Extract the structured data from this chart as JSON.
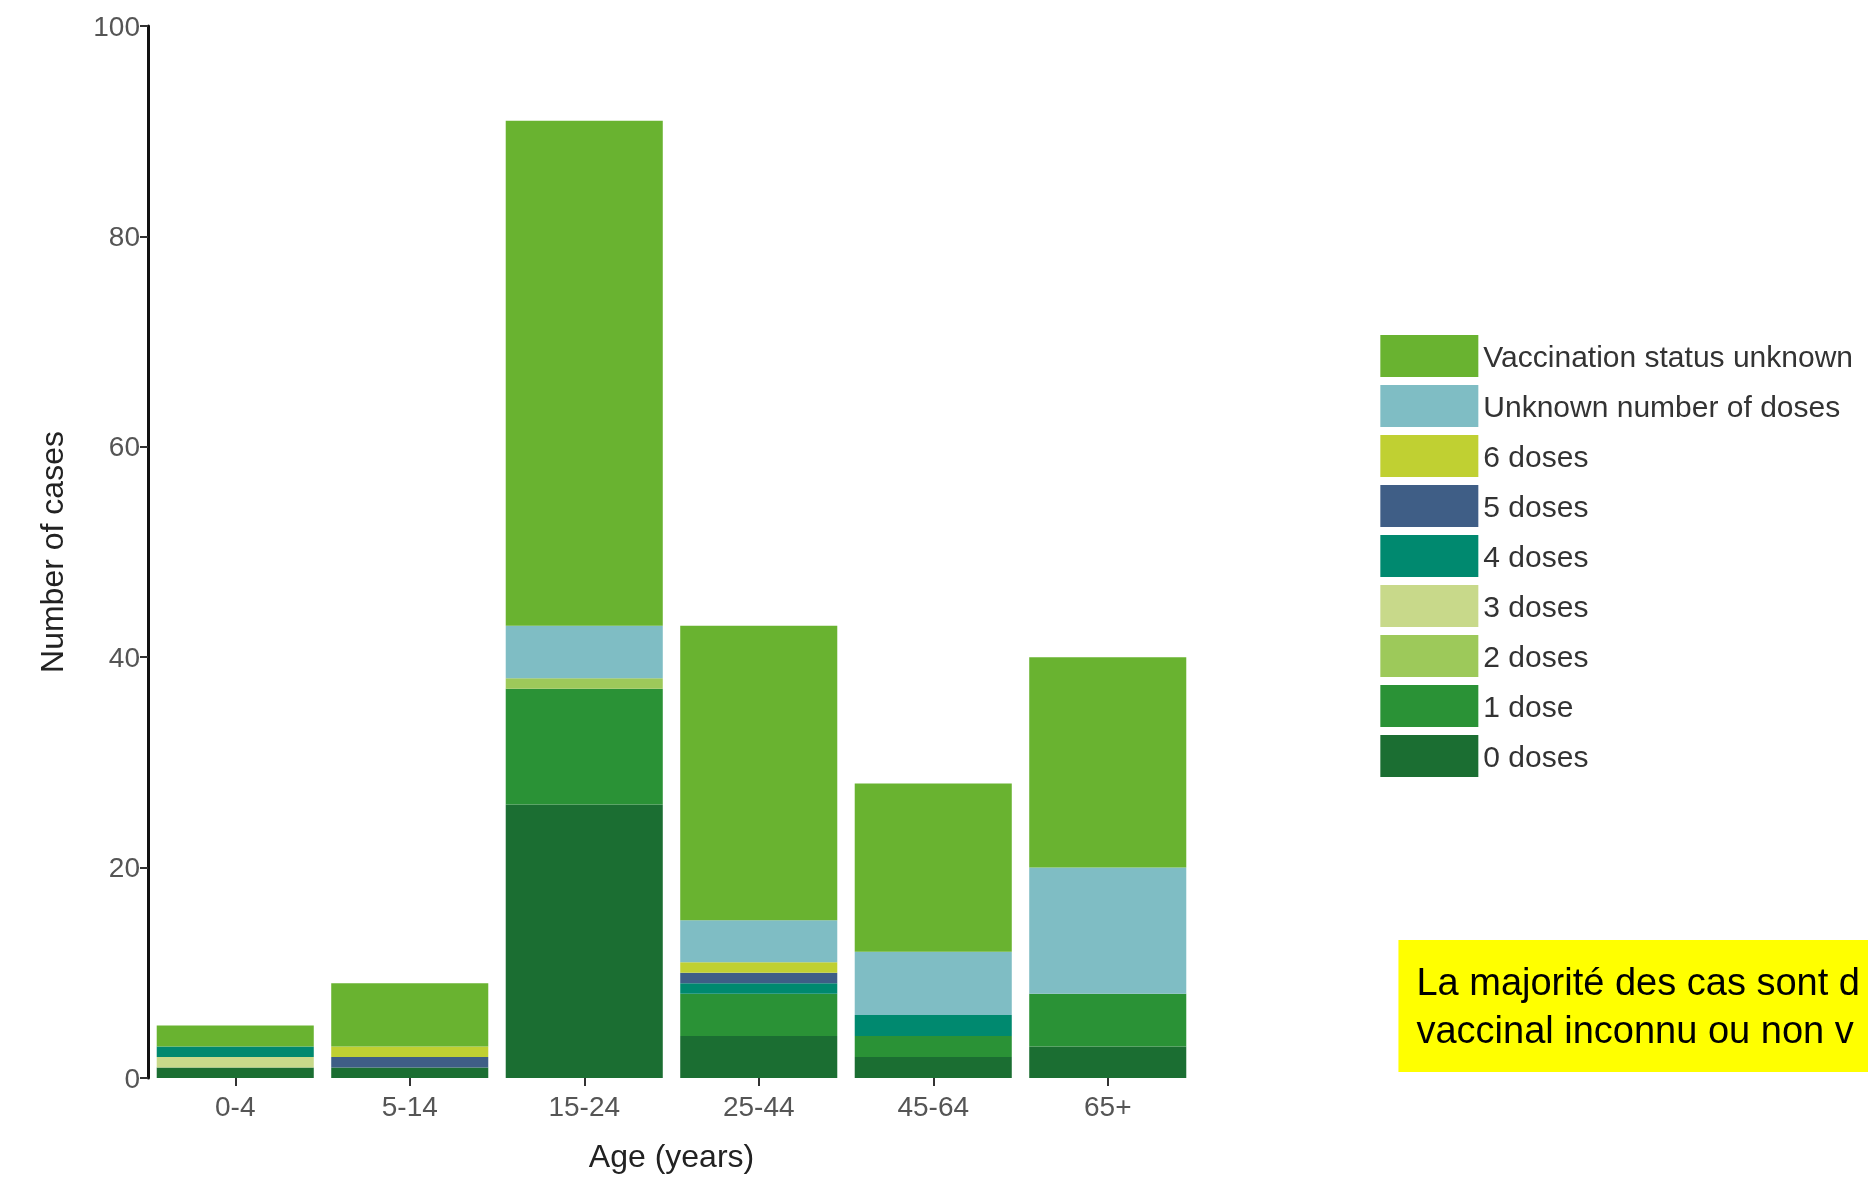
{
  "chart_data": {
    "type": "bar",
    "stacked": true,
    "xlabel": "Age (years)",
    "ylabel": "Number of cases",
    "categories": [
      "0-4",
      "5-14",
      "15-24",
      "25-44",
      "45-64",
      "65+"
    ],
    "ylim": [
      0,
      100
    ],
    "yticks": [
      0,
      20,
      40,
      60,
      80,
      100
    ],
    "grid": false,
    "legend": "right",
    "series": [
      {
        "name": "0 doses",
        "color": "#1b6e32",
        "values": [
          1,
          1,
          26,
          4,
          2,
          3
        ]
      },
      {
        "name": "1 dose",
        "color": "#2a9236",
        "values": [
          0,
          0,
          11,
          4,
          2,
          5
        ]
      },
      {
        "name": "2 doses",
        "color": "#9dc95a",
        "values": [
          0,
          0,
          1,
          0,
          0,
          0
        ]
      },
      {
        "name": "3 doses",
        "color": "#c8d98a",
        "values": [
          1,
          0,
          0,
          0,
          0,
          0
        ]
      },
      {
        "name": "4 doses",
        "color": "#00896f",
        "values": [
          1,
          0,
          0,
          1,
          2,
          0
        ]
      },
      {
        "name": "5 doses",
        "color": "#3f5e86",
        "values": [
          0,
          1,
          0,
          1,
          0,
          0
        ]
      },
      {
        "name": "6 doses",
        "color": "#c0d032",
        "values": [
          0,
          1,
          0,
          1,
          0,
          0
        ]
      },
      {
        "name": "Unknown number of doses",
        "color": "#7fbdc4",
        "values": [
          0,
          0,
          5,
          4,
          6,
          12
        ]
      },
      {
        "name": "Vaccination status unknown",
        "color": "#69b330",
        "values": [
          2,
          6,
          48,
          28,
          16,
          20
        ]
      }
    ],
    "annotations": [
      "La majorité des cas sont d\nvaccinal inconnu ou non v"
    ]
  }
}
